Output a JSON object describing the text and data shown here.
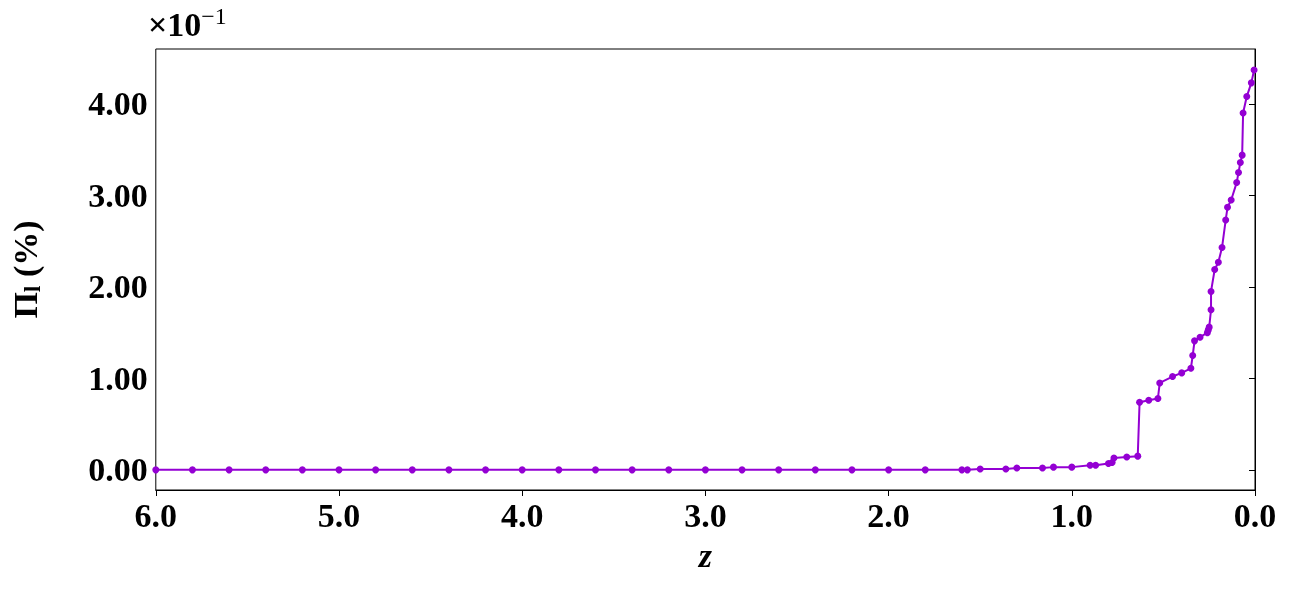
{
  "chart_data": {
    "type": "line",
    "xlabel": "z",
    "ylabel": "Π$_{l}$ (%)",
    "annotations": [
      "×10$^{−1}$"
    ],
    "x": [
      6.0,
      5.8,
      5.6,
      5.4,
      5.2,
      5.0,
      4.8,
      4.6,
      4.4,
      4.2,
      4.0,
      3.8,
      3.6,
      3.4,
      3.2,
      3.0,
      2.8,
      2.6,
      2.4,
      2.2,
      2.0,
      1.8,
      1.6,
      1.57,
      1.5,
      1.36,
      1.3,
      1.16,
      1.1,
      1.0,
      0.9,
      0.87,
      0.8,
      0.78,
      0.77,
      0.7,
      0.64,
      0.63,
      0.58,
      0.53,
      0.52,
      0.45,
      0.4,
      0.35,
      0.34,
      0.33,
      0.3,
      0.26,
      0.255,
      0.25,
      0.24,
      0.24,
      0.22,
      0.2,
      0.18,
      0.16,
      0.15,
      0.13,
      0.1,
      0.09,
      0.08,
      0.07,
      0.065,
      0.045,
      0.02,
      0.005
    ],
    "values": [
      0,
      0,
      0,
      0,
      0,
      0,
      0,
      0,
      0,
      0,
      0,
      0,
      0,
      0,
      0,
      0,
      0,
      0,
      0,
      0,
      0,
      0,
      0,
      0,
      0.01,
      0.01,
      0.02,
      0.02,
      0.03,
      0.03,
      0.05,
      0.05,
      0.07,
      0.08,
      0.13,
      0.14,
      0.15,
      0.74,
      0.76,
      0.78,
      0.95,
      1.02,
      1.06,
      1.11,
      1.25,
      1.41,
      1.45,
      1.5,
      1.53,
      1.56,
      1.75,
      1.95,
      2.19,
      2.27,
      2.43,
      2.73,
      2.87,
      2.95,
      3.14,
      3.25,
      3.36,
      3.44,
      3.9,
      4.08,
      4.23,
      4.37
    ],
    "color": "#9400d3",
    "marker": "circle",
    "line_style": "solid",
    "grid": false,
    "xlim": [
      6,
      0
    ],
    "xticks": [
      {
        "value": 6,
        "label": "6.0"
      },
      {
        "value": 5,
        "label": "5.0"
      },
      {
        "value": 4,
        "label": "4.0"
      },
      {
        "value": 3,
        "label": "3.0"
      },
      {
        "value": 2,
        "label": "2.0"
      },
      {
        "value": 1,
        "label": "1.0"
      },
      {
        "value": 0,
        "label": "0.0"
      }
    ],
    "ylim": [
      -0.22,
      4.6
    ],
    "yticks": [
      {
        "value": 0,
        "label": "0.00"
      },
      {
        "value": 1,
        "label": "1.00"
      },
      {
        "value": 2,
        "label": "2.00"
      },
      {
        "value": 3,
        "label": "3.00"
      },
      {
        "value": 4,
        "label": "4.00"
      }
    ]
  }
}
